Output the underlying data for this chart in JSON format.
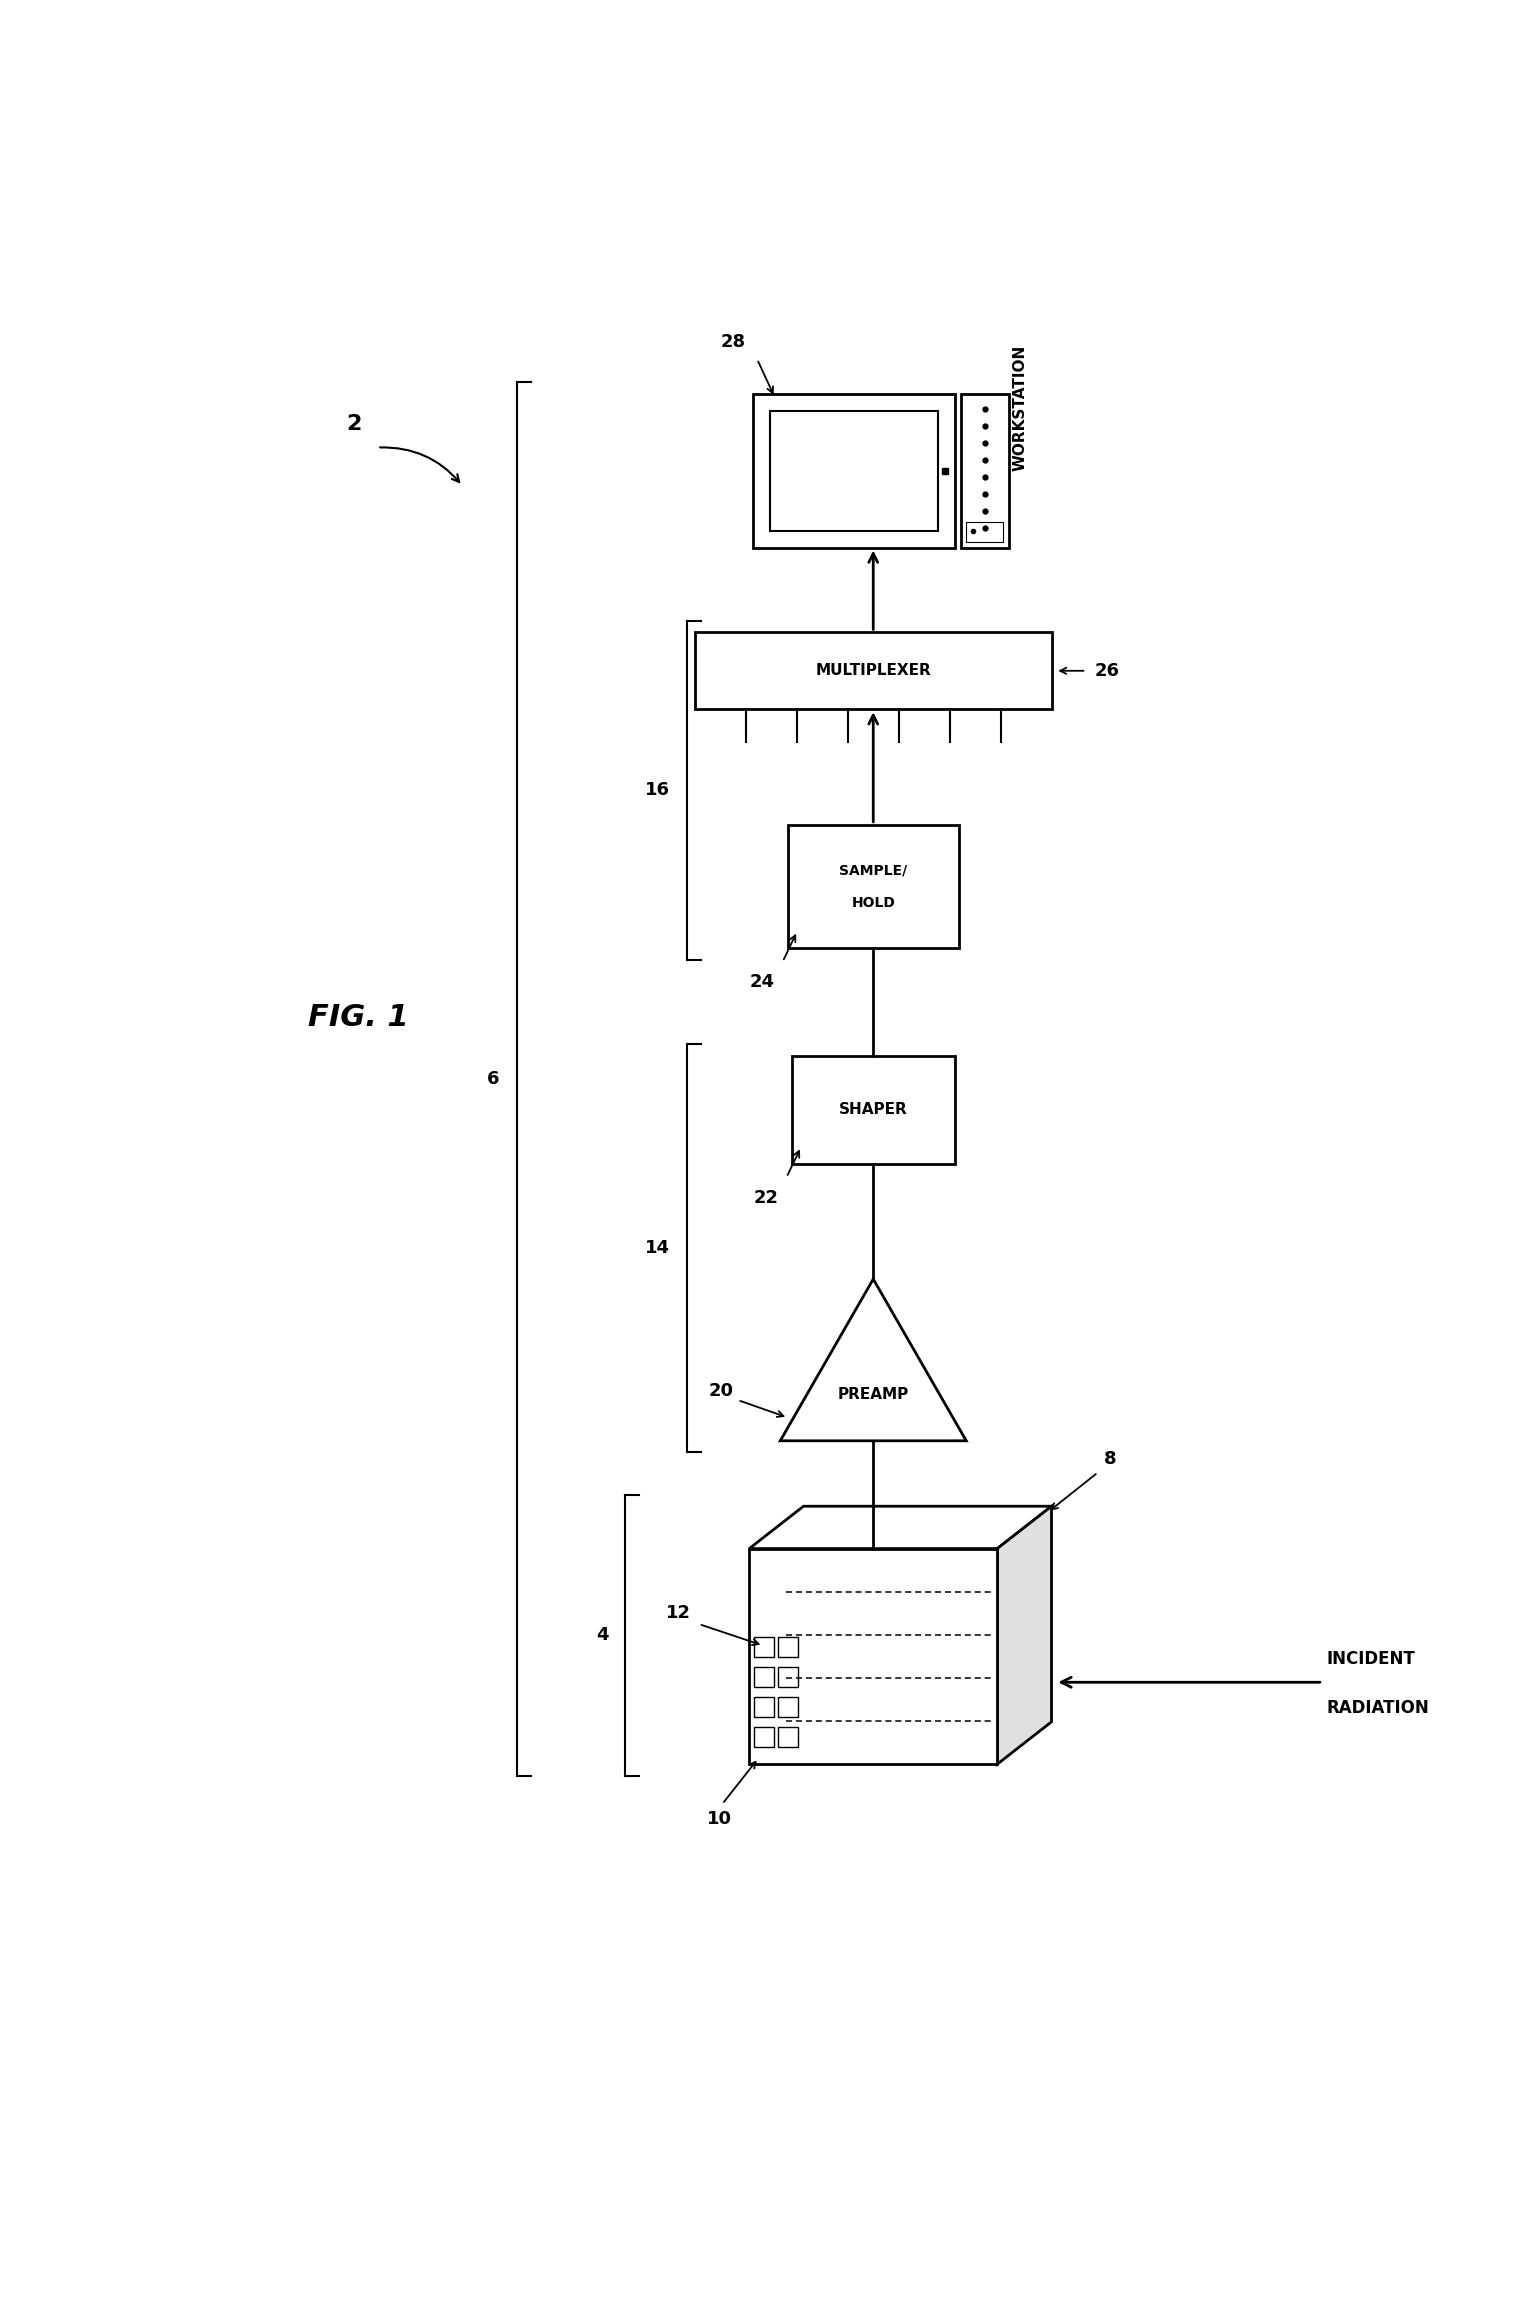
{
  "fig_label": "FIG. 1",
  "system_label": "2",
  "bg_color": "#ffffff",
  "preamp_label": "PREAMP",
  "shaper_label": "SHAPER",
  "sh_label1": "SAMPLE/",
  "sh_label2": "HOLD",
  "mux_label": "MULTIPLEXER",
  "ws_label": "WORKSTATION",
  "incident_label1": "INCIDENT",
  "incident_label2": "RADIATION",
  "r2": "2",
  "r4": "4",
  "r6": "6",
  "r8": "8",
  "r10": "10",
  "r12": "12",
  "r14": "14",
  "r16": "16",
  "r20": "20",
  "r22": "22",
  "r24": "24",
  "r26": "26",
  "r28": "28"
}
